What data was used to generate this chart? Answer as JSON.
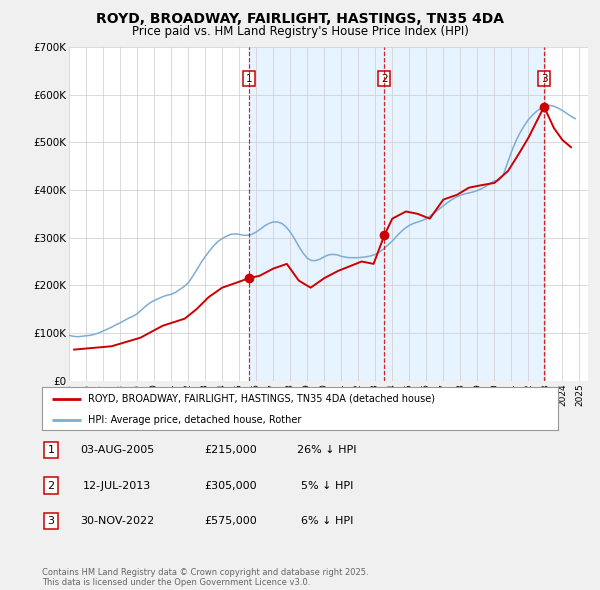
{
  "title": "ROYD, BROADWAY, FAIRLIGHT, HASTINGS, TN35 4DA",
  "subtitle": "Price paid vs. HM Land Registry's House Price Index (HPI)",
  "title_fontsize": 10,
  "subtitle_fontsize": 8.5,
  "background_color": "#f0f0f0",
  "plot_bg_color": "#ffffff",
  "grid_color": "#cccccc",
  "red_line_color": "#cc0000",
  "blue_line_color": "#7dadd4",
  "shade_color": "#ddeeff",
  "xmin": 1995,
  "xmax": 2025.5,
  "ymin": 0,
  "ymax": 700000,
  "yticks": [
    0,
    100000,
    200000,
    300000,
    400000,
    500000,
    600000,
    700000
  ],
  "ytick_labels": [
    "£0",
    "£100K",
    "£200K",
    "£300K",
    "£400K",
    "£500K",
    "£600K",
    "£700K"
  ],
  "legend_red_label": "ROYD, BROADWAY, FAIRLIGHT, HASTINGS, TN35 4DA (detached house)",
  "legend_blue_label": "HPI: Average price, detached house, Rother",
  "sale1_x": 2005.583,
  "sale1_y": 215000,
  "sale1_label": "1",
  "sale1_date": "03-AUG-2005",
  "sale1_price": "£215,000",
  "sale1_hpi": "26% ↓ HPI",
  "sale2_x": 2013.53,
  "sale2_y": 305000,
  "sale2_label": "2",
  "sale2_date": "12-JUL-2013",
  "sale2_price": "£305,000",
  "sale2_hpi": "5% ↓ HPI",
  "sale3_x": 2022.917,
  "sale3_y": 575000,
  "sale3_label": "3",
  "sale3_date": "30-NOV-2022",
  "sale3_price": "£575,000",
  "sale3_hpi": "6% ↓ HPI",
  "footer_text": "Contains HM Land Registry data © Crown copyright and database right 2025.\nThis data is licensed under the Open Government Licence v3.0.",
  "hpi_data_x": [
    1995.0,
    1995.25,
    1995.5,
    1995.75,
    1996.0,
    1996.25,
    1996.5,
    1996.75,
    1997.0,
    1997.25,
    1997.5,
    1997.75,
    1998.0,
    1998.25,
    1998.5,
    1998.75,
    1999.0,
    1999.25,
    1999.5,
    1999.75,
    2000.0,
    2000.25,
    2000.5,
    2000.75,
    2001.0,
    2001.25,
    2001.5,
    2001.75,
    2002.0,
    2002.25,
    2002.5,
    2002.75,
    2003.0,
    2003.25,
    2003.5,
    2003.75,
    2004.0,
    2004.25,
    2004.5,
    2004.75,
    2005.0,
    2005.25,
    2005.5,
    2005.75,
    2006.0,
    2006.25,
    2006.5,
    2006.75,
    2007.0,
    2007.25,
    2007.5,
    2007.75,
    2008.0,
    2008.25,
    2008.5,
    2008.75,
    2009.0,
    2009.25,
    2009.5,
    2009.75,
    2010.0,
    2010.25,
    2010.5,
    2010.75,
    2011.0,
    2011.25,
    2011.5,
    2011.75,
    2012.0,
    2012.25,
    2012.5,
    2012.75,
    2013.0,
    2013.25,
    2013.5,
    2013.75,
    2014.0,
    2014.25,
    2014.5,
    2014.75,
    2015.0,
    2015.25,
    2015.5,
    2015.75,
    2016.0,
    2016.25,
    2016.5,
    2016.75,
    2017.0,
    2017.25,
    2017.5,
    2017.75,
    2018.0,
    2018.25,
    2018.5,
    2018.75,
    2019.0,
    2019.25,
    2019.5,
    2019.75,
    2020.0,
    2020.25,
    2020.5,
    2020.75,
    2021.0,
    2021.25,
    2021.5,
    2021.75,
    2022.0,
    2022.25,
    2022.5,
    2022.75,
    2023.0,
    2023.25,
    2023.5,
    2023.75,
    2024.0,
    2024.25,
    2024.5,
    2024.75
  ],
  "hpi_data_y": [
    95000,
    93000,
    92000,
    93000,
    94000,
    95000,
    97000,
    100000,
    104000,
    108000,
    112000,
    117000,
    121000,
    126000,
    131000,
    135000,
    140000,
    148000,
    156000,
    163000,
    168000,
    172000,
    176000,
    179000,
    181000,
    185000,
    191000,
    197000,
    205000,
    218000,
    232000,
    247000,
    260000,
    272000,
    283000,
    292000,
    298000,
    303000,
    307000,
    308000,
    307000,
    305000,
    305000,
    307000,
    312000,
    318000,
    325000,
    330000,
    333000,
    333000,
    330000,
    323000,
    312000,
    298000,
    282000,
    268000,
    257000,
    252000,
    252000,
    255000,
    260000,
    264000,
    265000,
    264000,
    261000,
    259000,
    258000,
    258000,
    258000,
    259000,
    260000,
    262000,
    265000,
    270000,
    277000,
    285000,
    293000,
    303000,
    312000,
    320000,
    326000,
    330000,
    333000,
    336000,
    340000,
    346000,
    353000,
    360000,
    367000,
    374000,
    380000,
    385000,
    389000,
    392000,
    394000,
    396000,
    399000,
    403000,
    408000,
    414000,
    419000,
    420000,
    430000,
    455000,
    480000,
    502000,
    520000,
    535000,
    548000,
    558000,
    566000,
    572000,
    576000,
    578000,
    576000,
    572000,
    567000,
    561000,
    555000,
    550000
  ],
  "price_data_x": [
    1995.3,
    1997.5,
    1999.2,
    2000.5,
    2001.8,
    2002.5,
    2003.2,
    2004.0,
    2004.8,
    2005.583,
    2006.2,
    2007.0,
    2007.8,
    2008.5,
    2009.2,
    2010.0,
    2010.8,
    2011.5,
    2012.2,
    2012.9,
    2013.53,
    2014.0,
    2014.8,
    2015.5,
    2016.2,
    2017.0,
    2017.8,
    2018.5,
    2019.2,
    2020.0,
    2020.8,
    2021.5,
    2022.0,
    2022.917,
    2023.5,
    2024.0,
    2024.5
  ],
  "price_data_y": [
    65000,
    72000,
    90000,
    115000,
    130000,
    150000,
    175000,
    195000,
    205000,
    215000,
    220000,
    235000,
    245000,
    210000,
    195000,
    215000,
    230000,
    240000,
    250000,
    245000,
    305000,
    340000,
    355000,
    350000,
    340000,
    380000,
    390000,
    405000,
    410000,
    415000,
    440000,
    480000,
    510000,
    575000,
    530000,
    505000,
    490000
  ]
}
